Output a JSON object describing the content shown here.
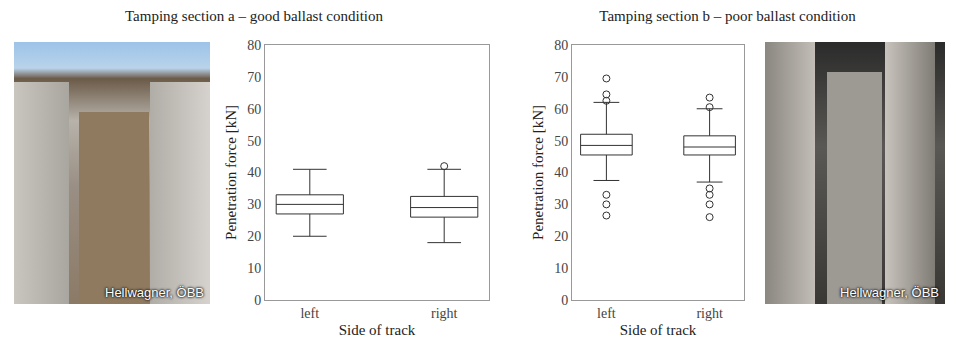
{
  "chart_data": [
    {
      "type": "box",
      "title": "Tamping section a – good ballast condition",
      "x_label": "Side of track",
      "y_label": "Penetration force [kN]",
      "categories": [
        "left",
        "right"
      ],
      "boxes": [
        {
          "category": "left",
          "q1": 27,
          "median": 30,
          "q3": 33,
          "whisker_low": 20,
          "whisker_high": 41,
          "outliers": []
        },
        {
          "category": "right",
          "q1": 26,
          "median": 29,
          "q3": 32.5,
          "whisker_low": 18,
          "whisker_high": 41,
          "outliers": [
            42
          ]
        }
      ],
      "color": "#333333",
      "ylim": [
        0,
        80
      ],
      "yticks": [
        0,
        10,
        20,
        30,
        40,
        50,
        60,
        70,
        80
      ],
      "grid": false,
      "photo_credit": "Hellwagner, ÖBB"
    },
    {
      "type": "box",
      "title": "Tamping section b – poor ballast condition",
      "x_label": "Side of track",
      "y_label": "Penetration force [kN]",
      "categories": [
        "left",
        "right"
      ],
      "boxes": [
        {
          "category": "left",
          "q1": 45.5,
          "median": 48.5,
          "q3": 52,
          "whisker_low": 37.5,
          "whisker_high": 62,
          "outliers": [
            69.5,
            64.5,
            62.5,
            33,
            30,
            26.5
          ]
        },
        {
          "category": "right",
          "q1": 45.5,
          "median": 48,
          "q3": 51.5,
          "whisker_low": 37,
          "whisker_high": 60,
          "outliers": [
            63.5,
            60.5,
            35,
            33,
            30,
            26
          ]
        }
      ],
      "color": "#333333",
      "ylim": [
        0,
        80
      ],
      "yticks": [
        0,
        10,
        20,
        30,
        40,
        50,
        60,
        70,
        80
      ],
      "grid": false,
      "photo_credit": "Hellwagner, ÖBB"
    }
  ]
}
